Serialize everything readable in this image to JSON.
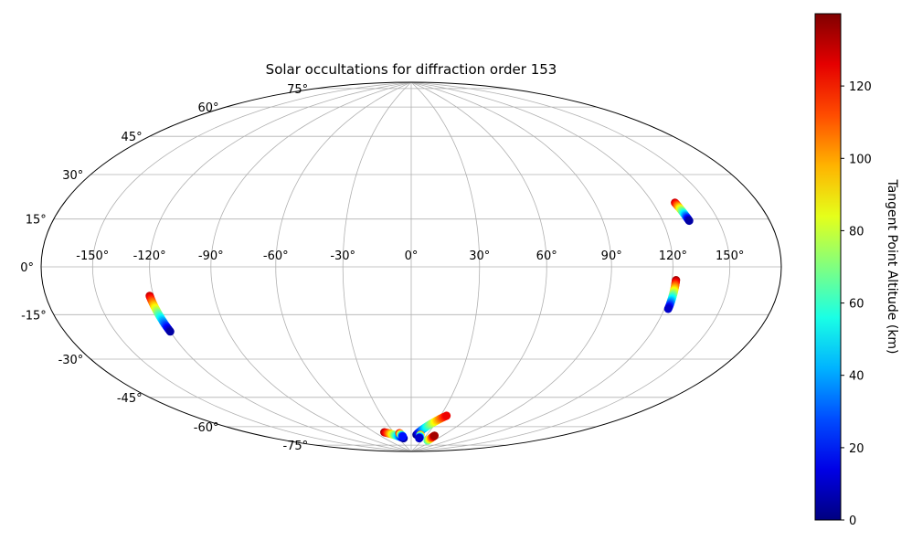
{
  "chart_data": {
    "type": "scatter",
    "projection": "hammer",
    "title": "Solar occultations for diffraction order 153",
    "grid": true,
    "lon_ticks": [
      "-150°",
      "-120°",
      "-90°",
      "-60°",
      "-30°",
      "0°",
      "30°",
      "60°",
      "90°",
      "120°",
      "150°"
    ],
    "lon_tick_values": [
      -150,
      -120,
      -90,
      -60,
      -30,
      0,
      30,
      60,
      90,
      120,
      150
    ],
    "lat_ticks": [
      "-75°",
      "-60°",
      "-45°",
      "-30°",
      "-15°",
      "0°",
      "15°",
      "30°",
      "45°",
      "60°",
      "75°"
    ],
    "lat_tick_values": [
      -75,
      -60,
      -45,
      -30,
      -15,
      0,
      15,
      30,
      45,
      60,
      75
    ],
    "colorbar": {
      "label": "Tangent Point Altitude (km)",
      "range": [
        0,
        140
      ],
      "ticks": [
        "0",
        "20",
        "40",
        "60",
        "80",
        "100",
        "120"
      ],
      "tick_values": [
        0,
        20,
        40,
        60,
        80,
        100,
        120
      ],
      "colormap": "jet"
    },
    "series": [
      {
        "lon": [
          -122,
          -120
        ],
        "lat": [
          -11,
          -25
        ],
        "alt": [
          130,
          5
        ]
      },
      {
        "lon": [
          122,
          122
        ],
        "lat": [
          -5,
          -16
        ],
        "alt": [
          135,
          10
        ]
      },
      {
        "lon": [
          132,
          134
        ],
        "lat": [
          24,
          17
        ],
        "alt": [
          130,
          5
        ]
      },
      {
        "lon": [
          -45,
          -18
        ],
        "lat": [
          -78,
          -82
        ],
        "alt": [
          135,
          5
        ]
      },
      {
        "lon": [
          -21,
          -18
        ],
        "lat": [
          -79,
          -81
        ],
        "alt": [
          130,
          20
        ]
      },
      {
        "lon": [
          10,
          36
        ],
        "lat": [
          -80,
          -69
        ],
        "alt": [
          0,
          125
        ]
      },
      {
        "lon": [
          18,
          19
        ],
        "lat": [
          -80,
          -82
        ],
        "alt": [
          110,
          10
        ]
      },
      {
        "lon": [
          45,
          46
        ],
        "lat": [
          -83,
          -80
        ],
        "alt": [
          60,
          135
        ]
      }
    ]
  }
}
